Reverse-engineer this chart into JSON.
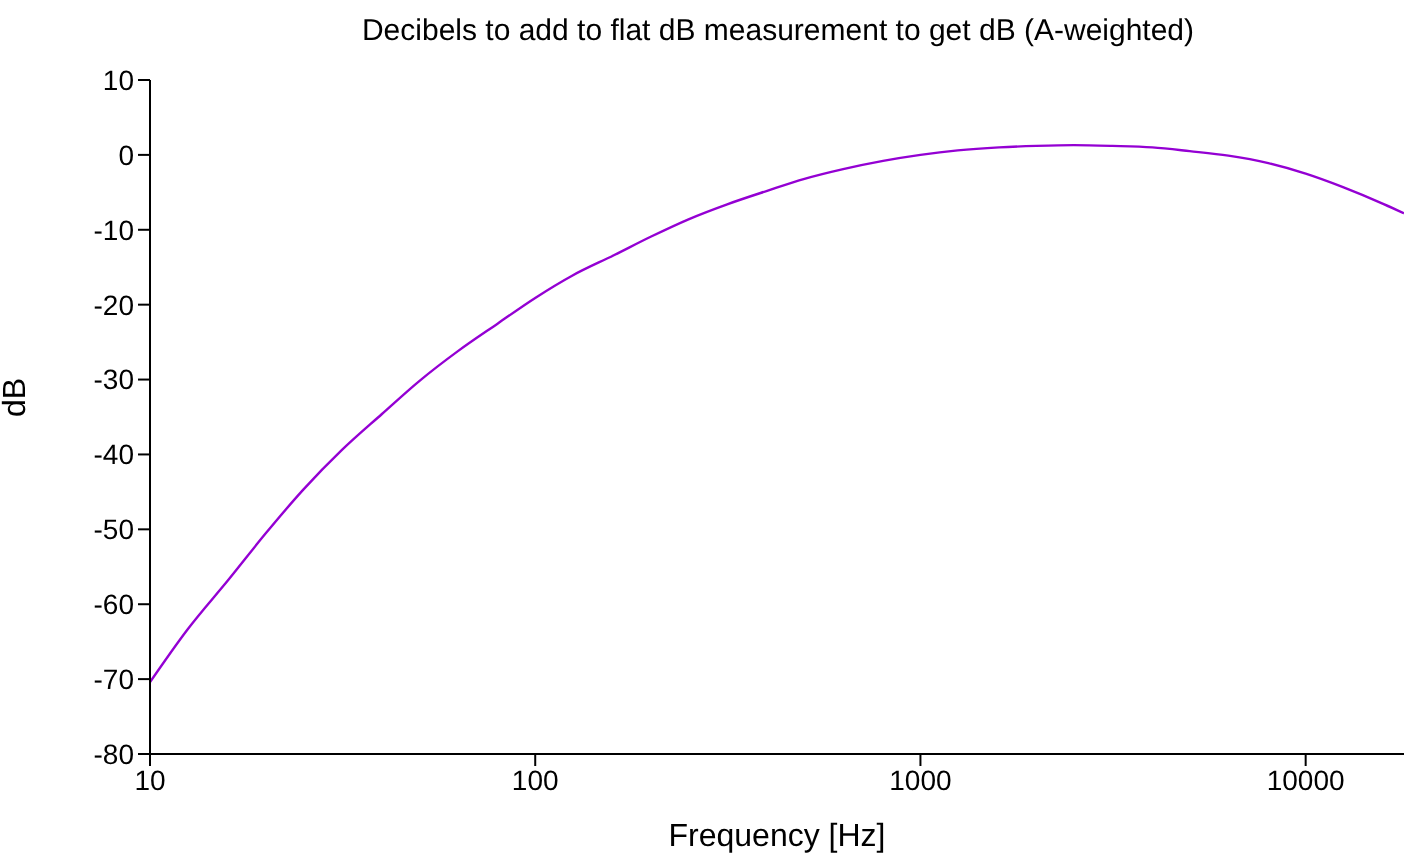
{
  "chart_data": {
    "type": "line",
    "title": "Decibels to add to flat dB measurement to get dB (A-weighted)",
    "xlabel": "Frequency [Hz]",
    "ylabel": "dB",
    "x": [
      10,
      12.5,
      16,
      20,
      25,
      31.5,
      40,
      50,
      63,
      80,
      100,
      125,
      160,
      200,
      250,
      315,
      400,
      500,
      630,
      800,
      1000,
      1250,
      1600,
      2000,
      2500,
      3150,
      4000,
      5000,
      6300,
      8000,
      10000,
      12500,
      16000,
      18000
    ],
    "series": [
      {
        "color": "#9400d3",
        "values": [
          -70.4,
          -63.4,
          -56.7,
          -50.5,
          -44.7,
          -39.4,
          -34.6,
          -30.2,
          -26.2,
          -22.5,
          -19.1,
          -16.1,
          -13.4,
          -10.9,
          -8.6,
          -6.6,
          -4.8,
          -3.2,
          -1.9,
          -0.8,
          0,
          0.6,
          1.0,
          1.2,
          1.3,
          1.2,
          1.0,
          0.5,
          -0.1,
          -1.1,
          -2.5,
          -4.3,
          -6.6,
          -7.8
        ]
      }
    ],
    "log": "x",
    "xlim": [
      10,
      18000
    ],
    "xticks": [
      10,
      100,
      1000,
      10000
    ],
    "ylim": [
      -80,
      10
    ],
    "yticks": [
      -80,
      -70,
      -60,
      -50,
      -40,
      -30,
      -20,
      -10,
      0,
      10
    ],
    "grid": false,
    "legend": false,
    "marker": "none",
    "line_style": "solid"
  }
}
